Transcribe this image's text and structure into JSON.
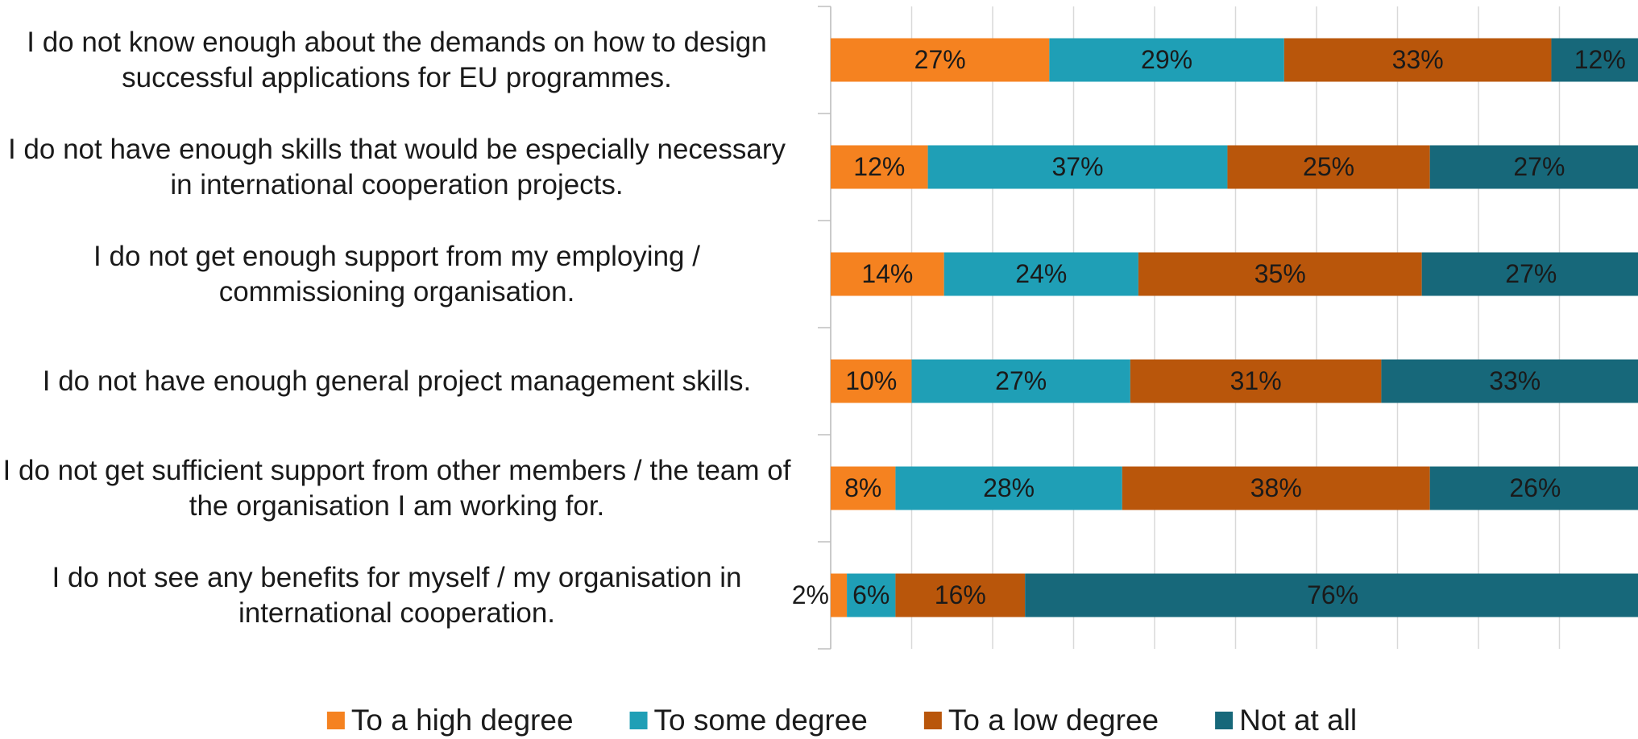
{
  "chart_data": {
    "type": "stacked-barh",
    "categories": [
      "I do not know enough about the demands on how to design successful applications for EU programmes.",
      "I do not have enough skills that would be especially necessary in international cooperation projects.",
      "I do not get enough support from my employing / commissioning organisation.",
      "I do not have enough general project management skills.",
      "I do not get sufficient support from other members / the team of the organisation I am working for.",
      "I do not see any benefits for myself / my organisation in international cooperation."
    ],
    "series": [
      {
        "name": "To a high degree",
        "color": "#f58220",
        "values": [
          27,
          12,
          14,
          10,
          8,
          2
        ],
        "value_labels": [
          "27%",
          "12%",
          "14%",
          "10%",
          "8%",
          "2%"
        ]
      },
      {
        "name": "To some degree",
        "color": "#1f9fb6",
        "values": [
          29,
          37,
          24,
          27,
          28,
          6
        ],
        "value_labels": [
          "29%",
          "37%",
          "24%",
          "27%",
          "28%",
          "6%"
        ]
      },
      {
        "name": "To a low degree",
        "color": "#b9560b",
        "values": [
          33,
          25,
          35,
          31,
          38,
          16
        ],
        "value_labels": [
          "33%",
          "25%",
          "35%",
          "31%",
          "38%",
          "16%"
        ]
      },
      {
        "name": "Not at all",
        "color": "#17687a",
        "values": [
          12,
          27,
          27,
          33,
          26,
          76
        ],
        "value_labels": [
          "12%",
          "27%",
          "27%",
          "33%",
          "26%",
          "76%"
        ]
      }
    ],
    "xlim": [
      0,
      100
    ],
    "xticks": [
      0,
      10,
      20,
      30,
      40,
      50,
      60,
      70,
      80,
      90,
      100
    ],
    "grid": true,
    "legend": "bottom"
  }
}
